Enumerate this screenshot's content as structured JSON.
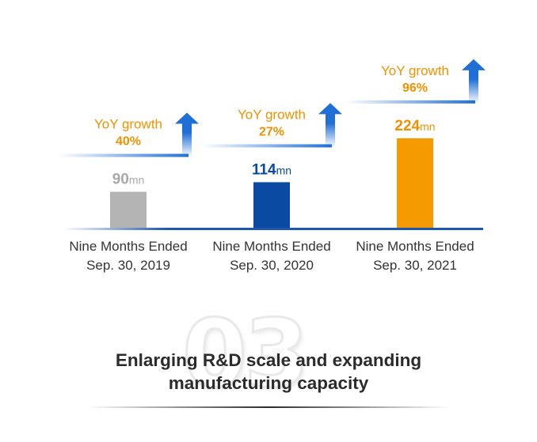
{
  "chart_data": {
    "type": "bar",
    "categories": [
      [
        "Nine Months Ended",
        "Sep. 30, 2019"
      ],
      [
        "Nine Months Ended",
        "Sep. 30, 2020"
      ],
      [
        "Nine Months Ended",
        "Sep. 30, 2021"
      ]
    ],
    "values": [
      90,
      114,
      224
    ],
    "value_unit": "mn",
    "bar_colors": [
      "#b4b4b4",
      "#0a4aa3",
      "#f59a00"
    ],
    "label_colors": [
      "#a9a9a9",
      "#0a4aa3",
      "#f29100"
    ],
    "growth_label": "YoY growth",
    "growth": [
      "40%",
      "27%",
      "96%"
    ],
    "growth_color": "#f29100",
    "arrow_color": "#1f6fd6",
    "baseline_color": "#1e56b0",
    "legend": "none",
    "grid": false
  },
  "footer": {
    "badge_number": "03",
    "title_lines": [
      "Enlarging R&D scale and expanding",
      "manufacturing capacity"
    ]
  }
}
